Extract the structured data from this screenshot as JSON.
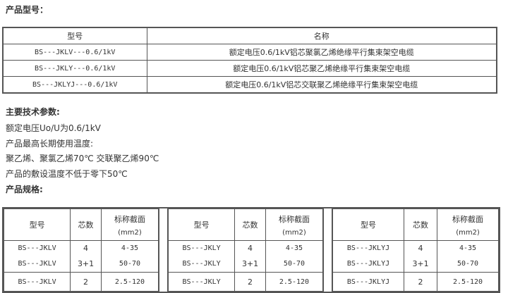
{
  "model_heading": "产品型号：",
  "model_table": {
    "headers": [
      "型号",
      "名称"
    ],
    "rows": [
      [
        "BS---JKLV---0.6/1kV",
        "额定电压0.6/1kV铝芯聚氯乙烯绝缘平行集束架空电缆"
      ],
      [
        "BS---JKLY---0.6/1kV",
        "额定电压0.6/1kV铝芯聚乙烯绝缘平行集束架空电缆"
      ],
      [
        "BS---JKLYJ---0.6/1kV",
        "额定电压0.6/1kV铝芯交联聚乙烯绝缘平行集束架空电缆"
      ]
    ]
  },
  "params_heading": "主要技术参数:",
  "params": [
    "额定电压Uo/U为0.6/1kV",
    "产品最高长期使用温度:",
    "聚乙烯、聚氯乙烯70℃ 交联聚乙烯90℃",
    "产品的敷设温度不低于零下50℃"
  ],
  "spec_heading": "产品规格:",
  "spec_tables": [
    {
      "headers": [
        "型号",
        "芯数",
        "标称截面",
        "(mm2)"
      ],
      "rows": [
        [
          "BS---JKLV",
          "4",
          "4-35"
        ],
        [
          "BS---JKLV",
          "3+1",
          "50-70"
        ],
        [
          "BS---JKLV",
          "2",
          "2.5-120"
        ]
      ]
    },
    {
      "headers": [
        "型号",
        "芯数",
        "标称截面",
        "(mm2)"
      ],
      "rows": [
        [
          "BS---JKLY",
          "4",
          "4-35"
        ],
        [
          "BS---JKLY",
          "3+1",
          "50-70"
        ],
        [
          "BS---JKLY",
          "2",
          "2.5-120"
        ]
      ]
    },
    {
      "headers": [
        "型号",
        "芯数",
        "标称截面",
        "(mm2)"
      ],
      "rows": [
        [
          "BS---JKLYJ",
          "4",
          "4-35"
        ],
        [
          "BS---JKLYJ",
          "3+1",
          "50-70"
        ],
        [
          "BS---JKLYJ",
          "2",
          "2.5-120"
        ]
      ]
    }
  ]
}
